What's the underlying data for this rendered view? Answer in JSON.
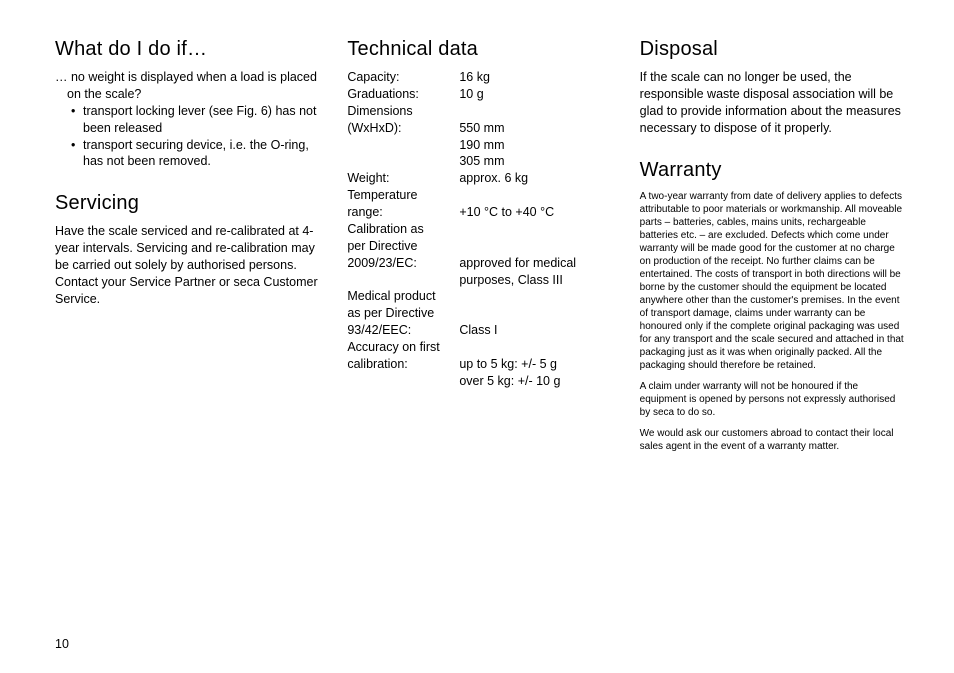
{
  "col1": {
    "h1": "What do I do if…",
    "q1": "… no weight is displayed when a load is placed on the scale?",
    "b1": "transport locking lever (see Fig. 6) has not been released",
    "b2": "transport securing device, i.e. the O-ring, has not been removed.",
    "h2": "Servicing",
    "p2": "Have the scale serviced and re-calibrated at 4-year intervals.  Servicing and re-calibration may be carried out solely by authorised persons.  Contact your Service Partner or seca Customer Service."
  },
  "col2": {
    "h1": "Technical data",
    "rows": [
      {
        "label": "Capacity:",
        "value": "16 kg"
      },
      {
        "label": "Graduations:",
        "value": "10 g"
      },
      {
        "label": "Dimensions",
        "value": ""
      },
      {
        "label": "(WxHxD):",
        "value": "550 mm"
      },
      {
        "label": "",
        "value": "190 mm"
      },
      {
        "label": "",
        "value": "305 mm"
      },
      {
        "label": "Weight:",
        "value": "approx. 6 kg"
      },
      {
        "label": "Temperature",
        "value": ""
      },
      {
        "label": "range:",
        "value": "+10 °C to +40 °C"
      },
      {
        "label": "Calibration as",
        "value": ""
      },
      {
        "label": "per Directive",
        "value": ""
      },
      {
        "label": "2009/23/EC:",
        "value": "approved for medical purposes, Class III"
      },
      {
        "label": "Medical product",
        "value": ""
      },
      {
        "label": "as per Directive",
        "value": ""
      },
      {
        "label": "93/42/EEC:",
        "value": "Class I"
      },
      {
        "label": "Accuracy on first",
        "value": ""
      },
      {
        "label": "calibration:",
        "value": "up to 5 kg: +/- 5 g"
      },
      {
        "label": "",
        "value": "over 5 kg: +/- 10 g"
      }
    ]
  },
  "col3": {
    "h1": "Disposal",
    "p1": "If the scale can no longer be used, the responsible waste disposal association will be glad to provide information about the measures necessary to dispose of it properly.",
    "h2": "Warranty",
    "w1": "A two-year warranty from date of delivery applies to defects attributable to poor materials or workmanship. All moveable parts – batteries, cables, mains units, rechargeable batteries etc. – are excluded. Defects which come under warranty will be made good for the customer at no charge on production of the receipt. No further claims can be entertained. The costs of transport in both directions will be borne by the customer should the equipment be located anywhere other than the customer's premises. In the event of transport damage, claims under warranty can be honoured only if the complete original packaging was used for any transport and the scale secured and attached in that packaging just as it was when originally packed. All the packaging should therefore be retained.",
    "w2": "A claim under warranty will not be honoured if the equipment is opened by persons not expressly authorised by seca to do so.",
    "w3": "We would ask our customers abroad to contact their local sales agent in the event of a warranty matter."
  },
  "pageNumber": "10"
}
